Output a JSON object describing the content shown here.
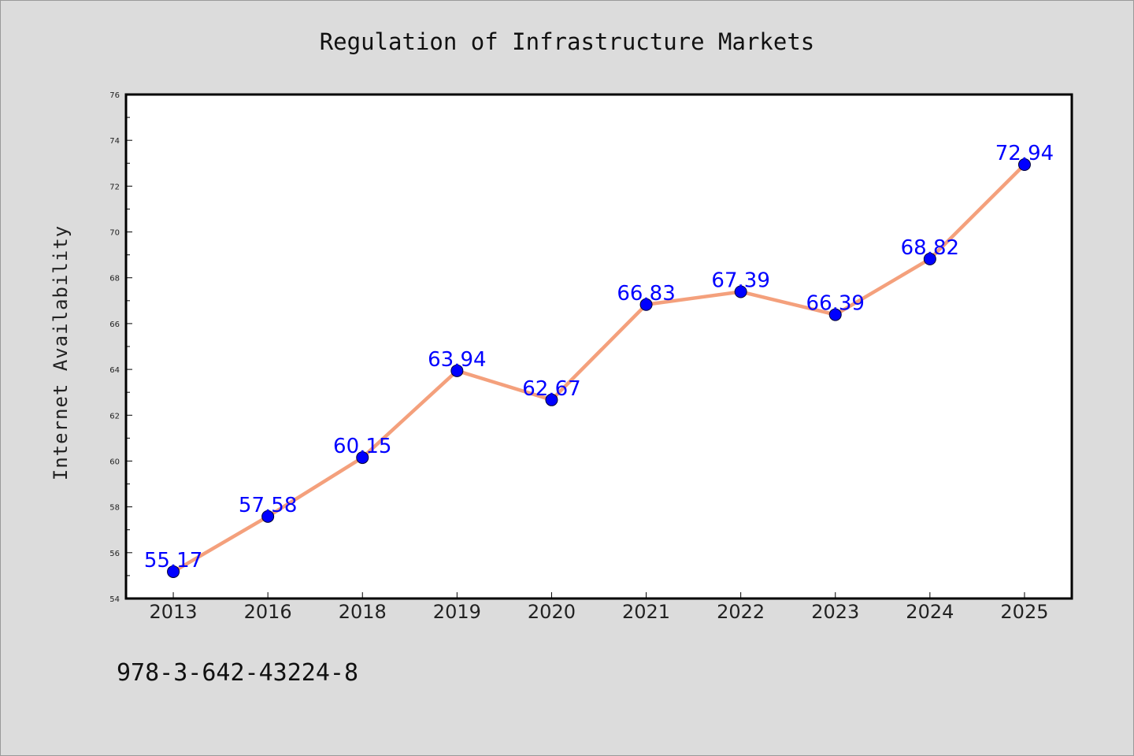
{
  "chart_data": {
    "type": "line",
    "title": "Regulation of Infrastructure Markets",
    "xlabel": "",
    "ylabel": "Internet Availability",
    "categories": [
      "2013",
      "2016",
      "2018",
      "2019",
      "2020",
      "2021",
      "2022",
      "2023",
      "2024",
      "2025"
    ],
    "series": [
      {
        "values": [
          55.17,
          57.58,
          60.15,
          63.94,
          62.67,
          66.83,
          67.39,
          66.39,
          68.82,
          72.94
        ],
        "data_labels": [
          "55.17",
          "57.58",
          "60.15",
          "63.94",
          "62.67",
          "66.83",
          "67.39",
          "66.39",
          "68.82",
          "72.94"
        ],
        "line_color": "#f4a07c",
        "marker_color": "#0000ff"
      }
    ],
    "ylim": [
      54,
      76
    ],
    "yticks": [
      "54",
      "56",
      "58",
      "60",
      "62",
      "64",
      "66",
      "68",
      "70",
      "72",
      "74",
      "76"
    ],
    "grid": false,
    "legend": "none"
  },
  "footer": {
    "isbn": "978-3-642-43224-8"
  },
  "colors": {
    "background": "#dcdcdc",
    "plot_area": "#ffffff",
    "line": "#f4a07c",
    "marker": "#0000ff",
    "data_label": "#0000ff"
  }
}
